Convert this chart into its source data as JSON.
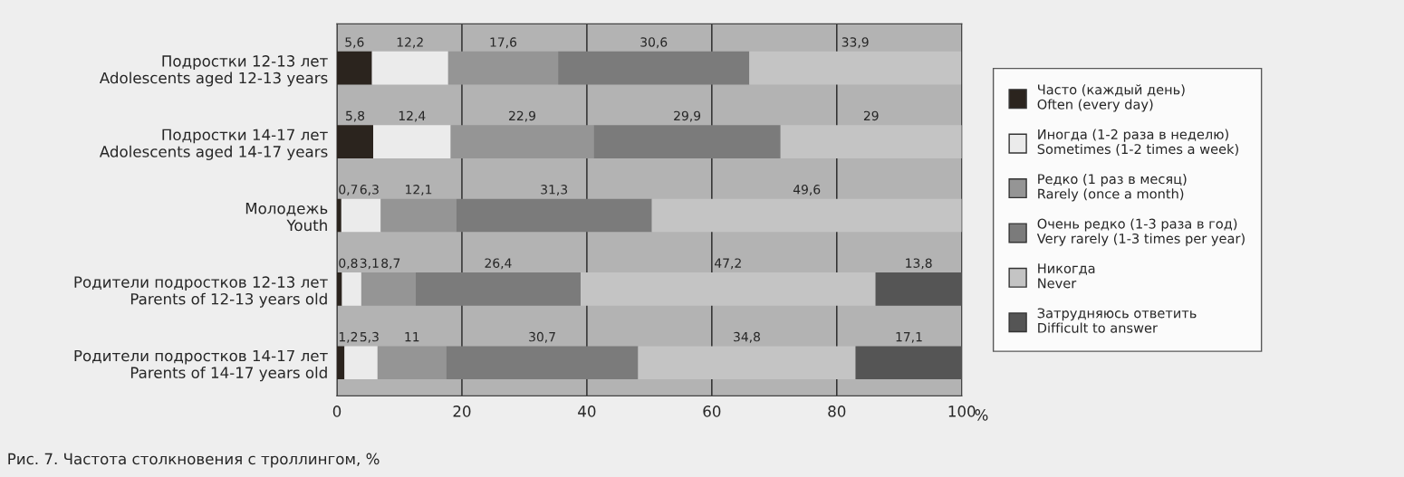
{
  "chart_data": {
    "type": "bar",
    "orientation": "horizontal",
    "stacked": true,
    "title": "Рис. 7. Частота столкновения с троллингом, %",
    "xlabel": "%",
    "categories": [
      "Подростки 12-13 лет\nAdolescents aged 12-13 years",
      "Подростки 14-17 лет\nAdolescents aged 14-17 years",
      "Молодежь\nYouth",
      "Родители подростков 12-13 лет\nParents of 12-13 years old",
      "Родители подростков 14-17 лет\nParents of 14-17 years old"
    ],
    "series": [
      {
        "name": "Часто (каждый день)\nOften (every day)",
        "color": "#2b241e",
        "values": [
          5.6,
          5.8,
          0.7,
          0.8,
          1.2
        ],
        "value_labels": [
          "5,6",
          "5,8",
          "0,7",
          "0,8",
          "1,2"
        ]
      },
      {
        "name": "Иногда (1-2 раза в неделю)\nSometimes (1-2 times a week)",
        "color": "#ebebeb",
        "values": [
          12.2,
          12.4,
          6.3,
          3.1,
          5.3
        ],
        "value_labels": [
          "12,2",
          "12,4",
          "6,3",
          "3,1",
          "5,3"
        ]
      },
      {
        "name": "Редко (1 раз в месяц)\nRarely (once a month)",
        "color": "#959595",
        "values": [
          17.6,
          22.9,
          12.1,
          8.7,
          11
        ],
        "value_labels": [
          "17,6",
          "22,9",
          "12,1",
          "8,7",
          "11"
        ]
      },
      {
        "name": "Очень редко (1-3 раза в год)\nVery rarely (1-3 times per year)",
        "color": "#7b7b7b",
        "values": [
          30.6,
          29.9,
          31.3,
          26.4,
          30.7
        ],
        "value_labels": [
          "30,6",
          "29,9",
          "31,3",
          "26,4",
          "30,7"
        ]
      },
      {
        "name": "Никогда\nNever",
        "color": "#c4c4c4",
        "values": [
          33.9,
          29,
          49.6,
          47.2,
          34.8
        ],
        "value_labels": [
          "33,9",
          "29",
          "49,6",
          "47,2",
          "34,8"
        ]
      },
      {
        "name": "Затрудняюсь ответить\nDifficult to answer",
        "color": "#555555",
        "values": [
          null,
          null,
          null,
          13.8,
          17.1
        ],
        "value_labels": [
          null,
          null,
          null,
          "13,8",
          "17,1"
        ]
      }
    ],
    "xlim": [
      0,
      100
    ],
    "xticks": [
      0,
      20,
      40,
      60,
      80,
      100
    ],
    "grid": "x",
    "legend": "right"
  }
}
